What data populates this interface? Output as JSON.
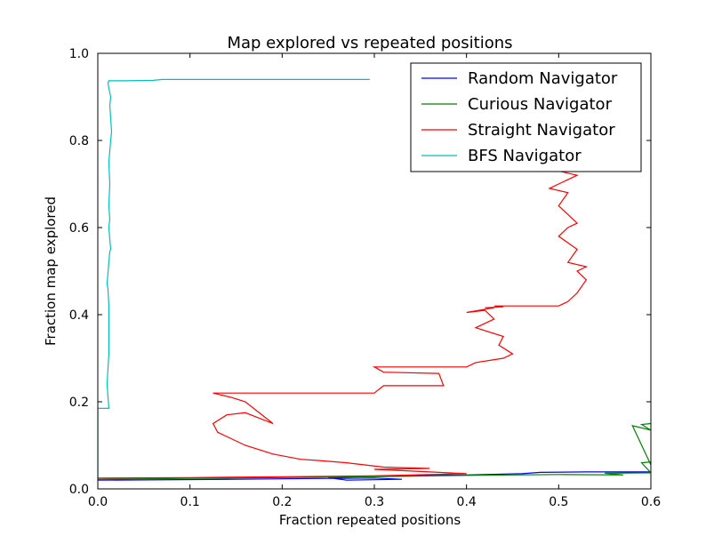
{
  "chart_data": {
    "type": "line",
    "title": "Map explored vs repeated positions",
    "xlabel": "Fraction repeated positions",
    "ylabel": "Fraction map explored",
    "xlim": [
      0.0,
      0.6
    ],
    "ylim": [
      0.0,
      1.0
    ],
    "xticks": [
      "0.0",
      "0.1",
      "0.2",
      "0.3",
      "0.4",
      "0.5",
      "0.6"
    ],
    "yticks": [
      "0.0",
      "0.2",
      "0.4",
      "0.6",
      "0.8",
      "1.0"
    ],
    "grid": false,
    "legend_position": "top-right",
    "series": [
      {
        "name": "Random Navigator",
        "color": "#0000ff",
        "x": [
          0.0,
          0.15,
          0.25,
          0.3,
          0.33,
          0.27,
          0.25,
          0.3,
          0.4,
          0.46,
          0.48,
          0.53,
          0.6
        ],
        "y": [
          0.02,
          0.022,
          0.024,
          0.025,
          0.022,
          0.02,
          0.026,
          0.029,
          0.032,
          0.035,
          0.038,
          0.039,
          0.039
        ]
      },
      {
        "name": "Curious Navigator",
        "color": "#008000",
        "x": [
          0.0,
          0.1,
          0.2,
          0.3,
          0.4,
          0.5,
          0.57,
          0.55,
          0.6,
          0.59,
          0.6,
          0.6,
          0.58,
          0.6,
          0.59,
          0.6
        ],
        "y": [
          0.022,
          0.024,
          0.026,
          0.028,
          0.031,
          0.033,
          0.032,
          0.036,
          0.037,
          0.06,
          0.062,
          0.055,
          0.145,
          0.135,
          0.148,
          0.15
        ]
      },
      {
        "name": "Straight Navigator",
        "color": "#ff0000",
        "x": [
          0.0,
          0.1,
          0.2,
          0.3,
          0.4,
          0.35,
          0.3,
          0.36,
          0.31,
          0.27,
          0.24,
          0.22,
          0.19,
          0.16,
          0.13,
          0.125,
          0.14,
          0.16,
          0.19,
          0.16,
          0.145,
          0.125,
          0.19,
          0.26,
          0.3,
          0.31,
          0.375,
          0.37,
          0.31,
          0.3,
          0.4,
          0.41,
          0.44,
          0.45,
          0.435,
          0.44,
          0.41,
          0.43,
          0.42,
          0.4,
          0.43,
          0.42,
          0.44,
          0.43,
          0.5,
          0.51,
          0.52,
          0.53,
          0.52,
          0.53,
          0.51,
          0.52,
          0.5,
          0.51,
          0.52,
          0.515,
          0.5,
          0.51,
          0.49,
          0.5,
          0.51,
          0.52,
          0.51,
          0.5,
          0.505,
          0.5
        ],
        "y": [
          0.025,
          0.026,
          0.028,
          0.03,
          0.035,
          0.04,
          0.045,
          0.047,
          0.05,
          0.06,
          0.065,
          0.068,
          0.08,
          0.1,
          0.13,
          0.15,
          0.17,
          0.175,
          0.15,
          0.2,
          0.21,
          0.22,
          0.22,
          0.22,
          0.22,
          0.237,
          0.237,
          0.265,
          0.268,
          0.28,
          0.28,
          0.29,
          0.3,
          0.31,
          0.33,
          0.35,
          0.37,
          0.39,
          0.41,
          0.405,
          0.416,
          0.416,
          0.418,
          0.42,
          0.42,
          0.43,
          0.45,
          0.48,
          0.5,
          0.51,
          0.52,
          0.55,
          0.58,
          0.6,
          0.61,
          0.62,
          0.65,
          0.68,
          0.69,
          0.7,
          0.71,
          0.72,
          0.725,
          0.73,
          0.73,
          0.74
        ]
      },
      {
        "name": "BFS Navigator",
        "color": "#00bfbf",
        "x": [
          0.0,
          0.0,
          0.012,
          0.01,
          0.012,
          0.012,
          0.012,
          0.012,
          0.011,
          0.01,
          0.012,
          0.013,
          0.014,
          0.012,
          0.013,
          0.012,
          0.013,
          0.012,
          0.014,
          0.015,
          0.013,
          0.014,
          0.012,
          0.011,
          0.012,
          0.012,
          0.03,
          0.06,
          0.07,
          0.2,
          0.295
        ],
        "y": [
          0.02,
          0.185,
          0.185,
          0.24,
          0.31,
          0.33,
          0.36,
          0.42,
          0.46,
          0.47,
          0.52,
          0.545,
          0.55,
          0.6,
          0.62,
          0.65,
          0.7,
          0.75,
          0.8,
          0.82,
          0.88,
          0.9,
          0.92,
          0.933,
          0.935,
          0.937,
          0.937,
          0.938,
          0.94,
          0.94,
          0.94
        ]
      }
    ]
  }
}
